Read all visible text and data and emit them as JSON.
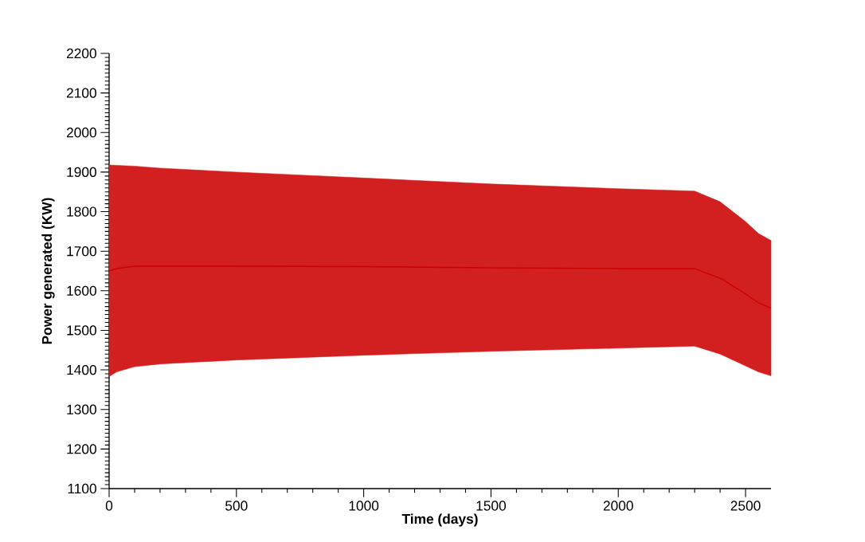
{
  "chart_data": {
    "type": "line",
    "xlabel": "Time (days)",
    "ylabel": "Power generated  (KW)",
    "xlim": [
      0,
      2600
    ],
    "ylim": [
      1100,
      2200
    ],
    "xticks": [
      0,
      500,
      1000,
      1500,
      2000,
      2500
    ],
    "yticks": [
      1100,
      1200,
      1300,
      1400,
      1500,
      1600,
      1700,
      1800,
      1900,
      2000,
      2100,
      2200
    ],
    "grid": false,
    "series": [
      {
        "color": "#cc0000",
        "x": [
          0,
          30,
          100,
          200,
          500,
          1000,
          1500,
          2000,
          2300,
          2400,
          2500,
          2550,
          2600
        ],
        "values": [
          1650,
          1656,
          1662,
          1662,
          1662,
          1661,
          1658,
          1656,
          1656,
          1632,
          1592,
          1570,
          1556
        ],
        "lower": [
          1383,
          1395,
          1408,
          1415,
          1425,
          1437,
          1447,
          1455,
          1460,
          1440,
          1410,
          1395,
          1385
        ],
        "upper": [
          1918,
          1917,
          1915,
          1910,
          1900,
          1885,
          1870,
          1858,
          1852,
          1825,
          1775,
          1745,
          1727
        ]
      }
    ]
  }
}
